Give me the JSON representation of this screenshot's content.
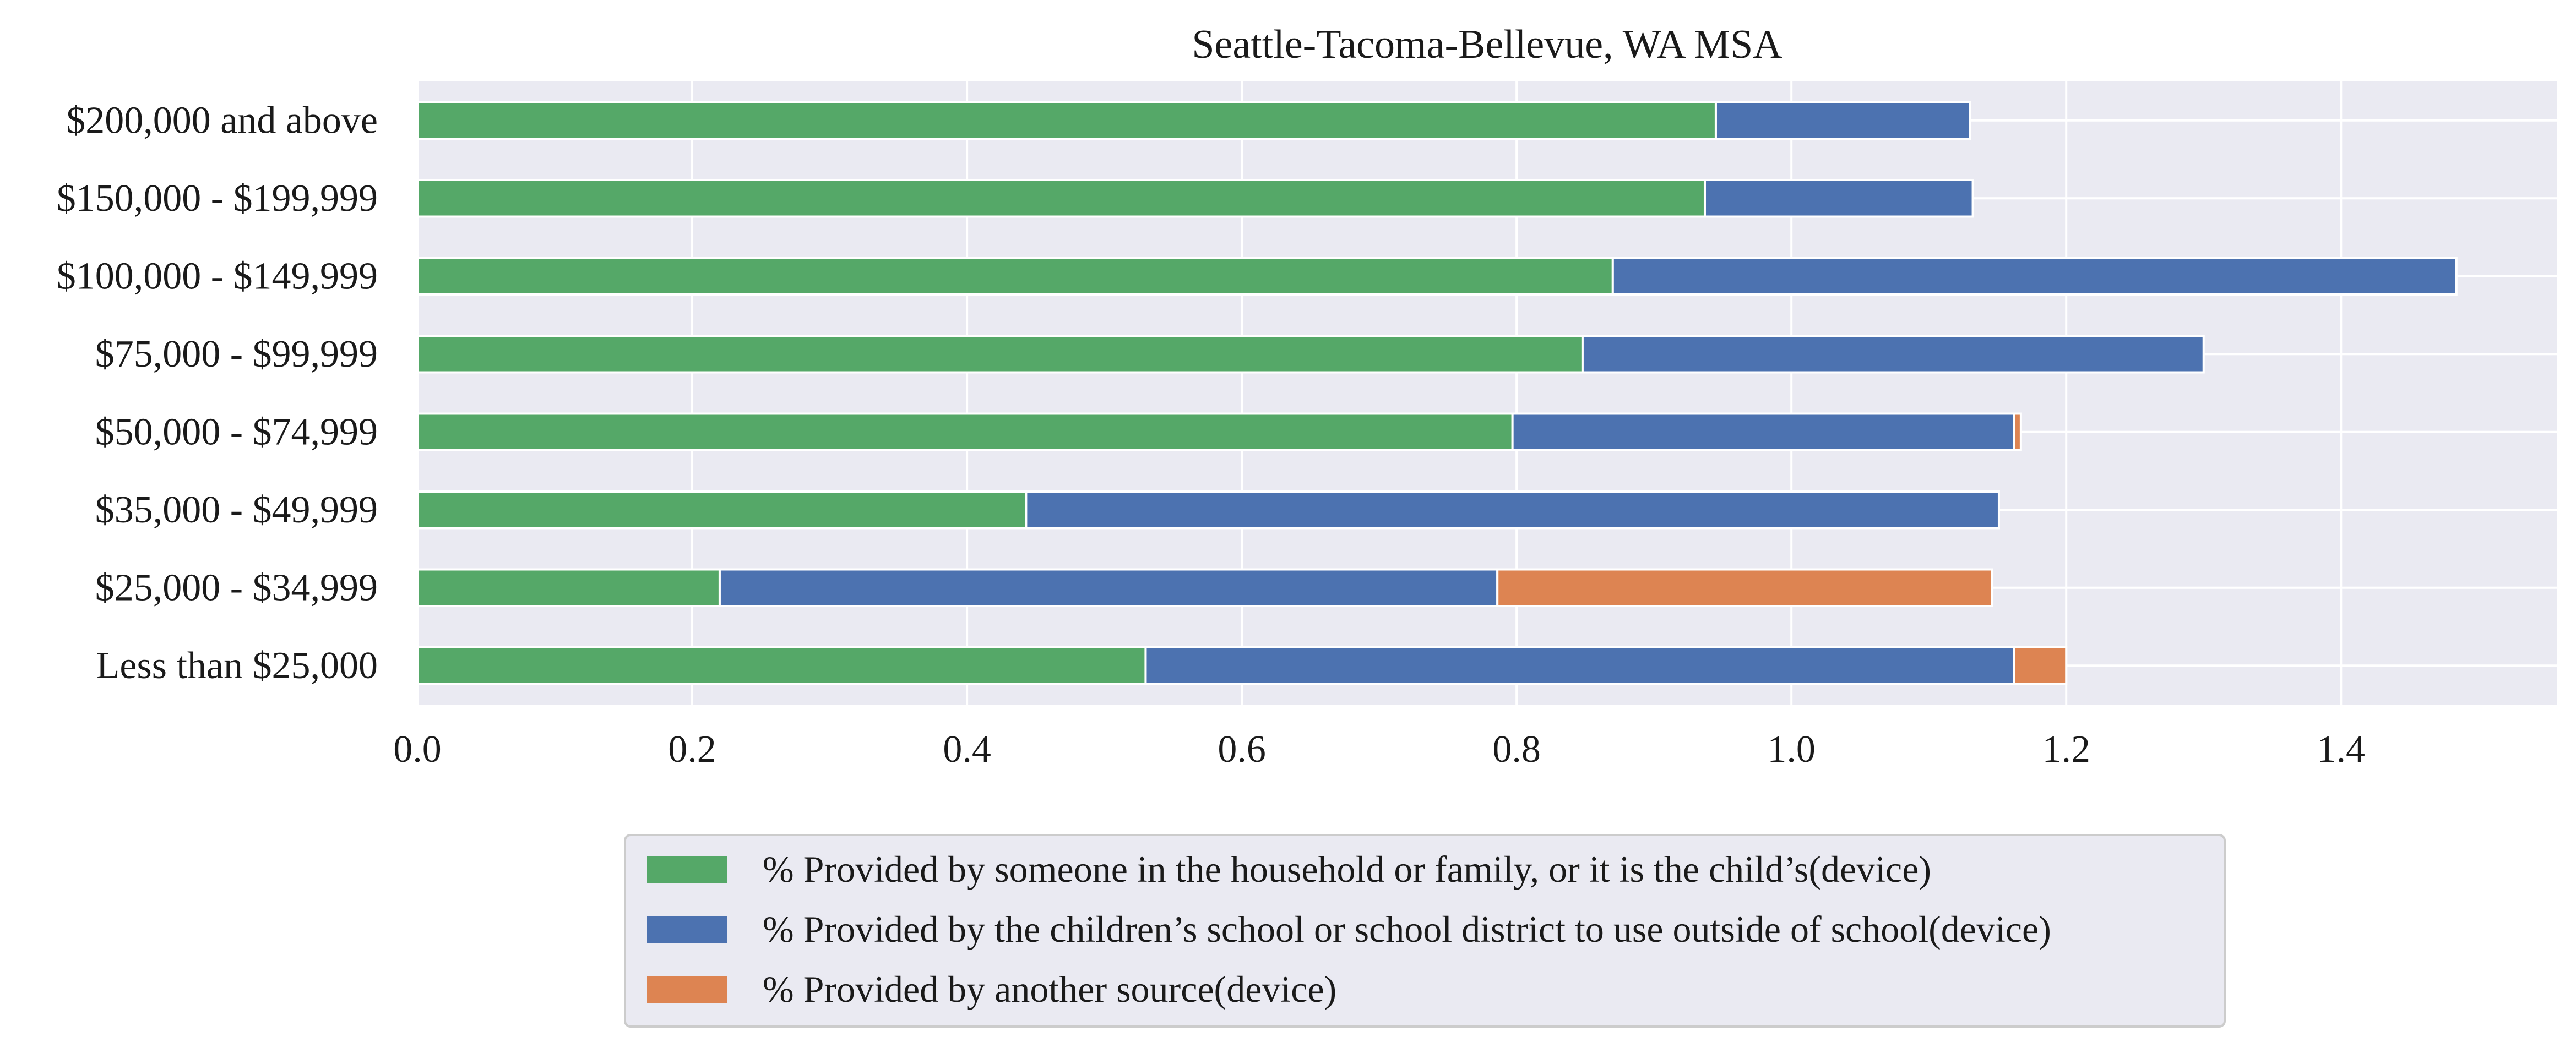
{
  "chart_data": {
    "type": "bar",
    "orientation": "horizontal",
    "stacked": true,
    "title": "Seattle-Tacoma-Bellevue, WA MSA",
    "xlabel": "",
    "ylabel": "",
    "categories": [
      "Less than $25,000",
      "$25,000 - $34,999",
      "$35,000 - $49,999",
      "$50,000 - $74,999",
      "$75,000 - $99,999",
      "$100,000 - $149,999",
      "$150,000 - $199,999",
      "$200,000 and above"
    ],
    "series": [
      {
        "name": "% Provided by someone in the household or family, or it is the child’s(device)",
        "color": "#55a868",
        "values": [
          0.53,
          0.22,
          0.443,
          0.797,
          0.848,
          0.87,
          0.937,
          0.945
        ]
      },
      {
        "name": "% Provided by the children’s school or school district to use outside of school(device)",
        "color": "#4c72b0",
        "values": [
          0.632,
          0.566,
          0.708,
          0.365,
          0.452,
          0.614,
          0.195,
          0.185
        ]
      },
      {
        "name": "% Provided by another source(device)",
        "color": "#dd8452",
        "values": [
          0.038,
          0.36,
          0.0,
          0.005,
          0.0,
          0.0,
          0.0,
          0.0
        ]
      }
    ],
    "xlim": [
      0,
      1.557
    ],
    "xticks": [
      0.0,
      0.2,
      0.4,
      0.6,
      0.8,
      1.0,
      1.2,
      1.4
    ],
    "xtick_labels": [
      "0.0",
      "0.2",
      "0.4",
      "0.6",
      "0.8",
      "1.0",
      "1.2",
      "1.4"
    ],
    "grid": true,
    "legend_position": "bottom-center"
  },
  "colors": {
    "plot_background": "#eaeaf2",
    "grid": "#ffffff",
    "text": "#1a1a1a"
  }
}
